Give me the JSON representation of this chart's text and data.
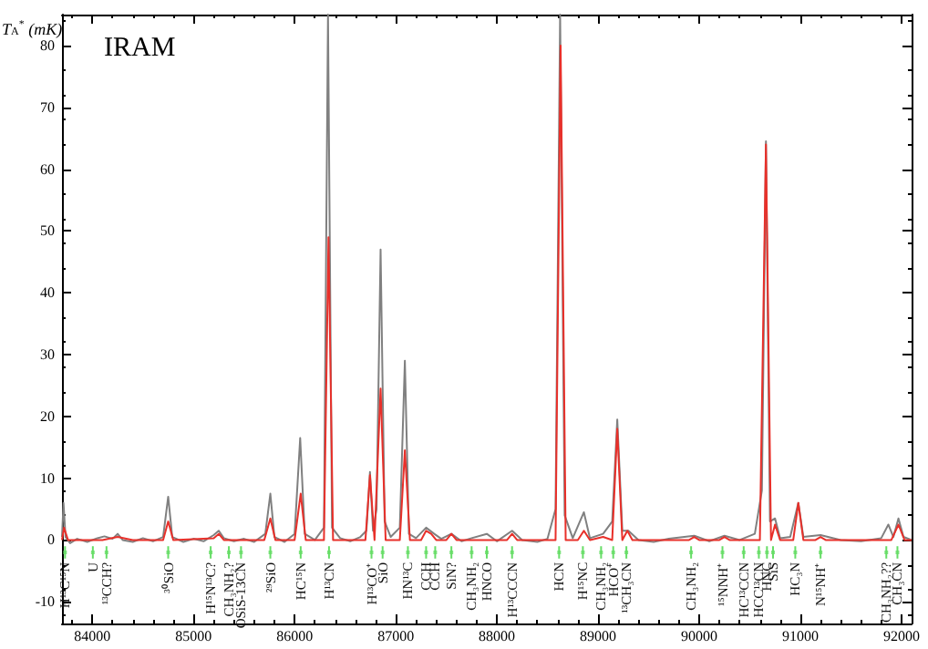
{
  "chart_data": {
    "type": "line",
    "title": "IRAM",
    "ylabel": "T$_{A}$$^{*}$ (mK)",
    "xlim": [
      83700,
      92100
    ],
    "ylim": [
      -13.5,
      85
    ],
    "xticks": [
      84000,
      85000,
      86000,
      87000,
      88000,
      89000,
      90000,
      91000,
      92000
    ],
    "yticks": [
      -10,
      0,
      10,
      20,
      30,
      40,
      50,
      60,
      70,
      80
    ],
    "marker": "none",
    "line_style": "solid",
    "series": [
      {
        "color": "#808080",
        "x": [
          83700,
          83715,
          83735,
          83780,
          83850,
          83950,
          84050,
          84120,
          84200,
          84250,
          84300,
          84400,
          84500,
          84600,
          84700,
          84750,
          84790,
          84900,
          85000,
          85100,
          85200,
          85250,
          85300,
          85400,
          85500,
          85600,
          85710,
          85760,
          85800,
          85900,
          86000,
          86055,
          86100,
          86200,
          86290,
          86330,
          86370,
          86450,
          86550,
          86650,
          86710,
          86745,
          86775,
          86810,
          86850,
          86890,
          86950,
          87040,
          87090,
          87130,
          87200,
          87300,
          87380,
          87450,
          87550,
          87650,
          87750,
          87900,
          88000,
          88150,
          88250,
          88400,
          88500,
          88580,
          88625,
          88670,
          88750,
          88860,
          88920,
          89050,
          89140,
          89190,
          89240,
          89300,
          89400,
          89550,
          89700,
          89950,
          90100,
          90250,
          90400,
          90550,
          90620,
          90660,
          90700,
          90750,
          90800,
          90900,
          90980,
          91030,
          91200,
          91400,
          91600,
          91800,
          91870,
          91920,
          91970,
          92020,
          92100
        ],
        "values": [
          0.5,
          6,
          0.5,
          -0.5,
          0.2,
          -0.3,
          0.3,
          0.6,
          0.2,
          1,
          0,
          -0.3,
          0.3,
          -0.2,
          0.5,
          7,
          0.5,
          -0.3,
          0.2,
          -0.2,
          0.8,
          1.5,
          0.3,
          -0.2,
          0.2,
          -0.3,
          1,
          7.5,
          0.5,
          -0.3,
          1,
          16.5,
          1,
          0,
          2,
          85,
          2,
          0.3,
          -0.2,
          0.5,
          1.5,
          11,
          1.5,
          5,
          47,
          3,
          0.5,
          2,
          29,
          1,
          0.3,
          2,
          1,
          0.2,
          1,
          -0.2,
          0.3,
          1,
          -0.2,
          1.5,
          0,
          -0.3,
          0.2,
          5,
          85,
          4,
          0.3,
          4.5,
          0.3,
          1,
          3,
          19.5,
          1.5,
          1.5,
          0,
          -0.3,
          0.2,
          0.7,
          -0.2,
          0.7,
          0,
          1,
          8,
          64.5,
          3,
          3.5,
          0.3,
          0.5,
          6,
          0.5,
          0.8,
          0,
          -0.2,
          0.3,
          2.5,
          0.5,
          3.5,
          0.5,
          0
        ]
      },
      {
        "color": "#e8302a",
        "x": [
          83700,
          83720,
          83760,
          84100,
          84250,
          84400,
          84700,
          84750,
          84800,
          85200,
          85250,
          85300,
          85700,
          85760,
          85810,
          86000,
          86060,
          86110,
          86290,
          86335,
          86380,
          86700,
          86745,
          86790,
          86850,
          86900,
          87040,
          87090,
          87140,
          87250,
          87300,
          87350,
          87400,
          87500,
          87550,
          87600,
          88100,
          88150,
          88200,
          88580,
          88630,
          88680,
          88800,
          88860,
          88920,
          89050,
          89140,
          89190,
          89240,
          89290,
          89340,
          89900,
          89950,
          90000,
          90200,
          90250,
          90300,
          90600,
          90660,
          90710,
          90750,
          90800,
          90930,
          90980,
          91030,
          91150,
          91200,
          91250,
          91900,
          91970,
          92030,
          92100
        ],
        "values": [
          0,
          2,
          0,
          0,
          0.5,
          0,
          0,
          3,
          0,
          0.3,
          1,
          0,
          0,
          3.5,
          0,
          0,
          7.5,
          0,
          0,
          49,
          0,
          0,
          10.5,
          0,
          24.5,
          0,
          0,
          14.5,
          0,
          0,
          1.5,
          1,
          0,
          0,
          1,
          0,
          0,
          1,
          0,
          0,
          80,
          0,
          0,
          1.5,
          0,
          0.5,
          0,
          18,
          0,
          1.5,
          0,
          0,
          0.5,
          0,
          0,
          0.5,
          0,
          0,
          64,
          0,
          2.5,
          0,
          0,
          6,
          0,
          0,
          0.5,
          0,
          0,
          2.5,
          0,
          0
        ]
      },
      {
        "type": "scatter",
        "marker": "square",
        "errors": [
          1,
          1,
          1,
          1,
          1,
          1,
          1,
          1,
          1,
          1,
          1,
          1,
          1,
          1,
          1,
          1,
          1,
          1,
          1,
          1,
          1,
          1,
          1,
          1,
          1,
          1,
          1,
          1,
          1,
          1,
          1,
          1,
          1,
          1
        ],
        "color": "#66dd66",
        "x": [
          83730,
          84005,
          84140,
          84750,
          85170,
          85350,
          85470,
          85760,
          86060,
          86340,
          86760,
          86870,
          87120,
          87300,
          87390,
          87550,
          87750,
          87900,
          88150,
          88615,
          88850,
          89030,
          89150,
          89280,
          89920,
          90230,
          90440,
          90590,
          90670,
          90730,
          90950,
          91200,
          91850,
          91960
        ],
        "values": [
          -2,
          -2,
          -2,
          -2,
          -2,
          -2,
          -2,
          -2,
          -2,
          -2,
          -2,
          -2,
          -2,
          -2,
          -2,
          -2,
          -2,
          -2,
          -2,
          -2,
          -2,
          -2,
          -2,
          -2,
          -2,
          -2,
          -2,
          -2,
          -2,
          -2,
          -2,
          -2,
          -2,
          -2
        ],
        "value_labels": [
          "H¹³C¹⁵N",
          "U",
          "¹³CCH?",
          "³⁰SiO",
          "H¹⁵N¹³C?",
          "CH₃NH₂?",
          "OSiS-13CN",
          "²⁹SiO",
          "HC¹⁵N",
          "H¹³CN",
          "H¹³CO⁺",
          "SiO",
          "HN¹³C",
          "CCH",
          "CCH",
          "SiN?",
          "CH₃NH₂",
          "HNCO",
          "H¹³CCCN",
          "HCN",
          "H¹⁵NC",
          "CH₃NH₂",
          "HCO⁺",
          "¹³CH₃CN",
          "CH₃NH₂",
          "¹⁵NNH⁺",
          "HC¹³CCN",
          "HCC¹³CN",
          "HNC",
          "SiS",
          "HC₃N",
          "N¹⁵NH⁺",
          "CH₃NH₂??",
          "CH₃CN"
        ]
      }
    ]
  }
}
